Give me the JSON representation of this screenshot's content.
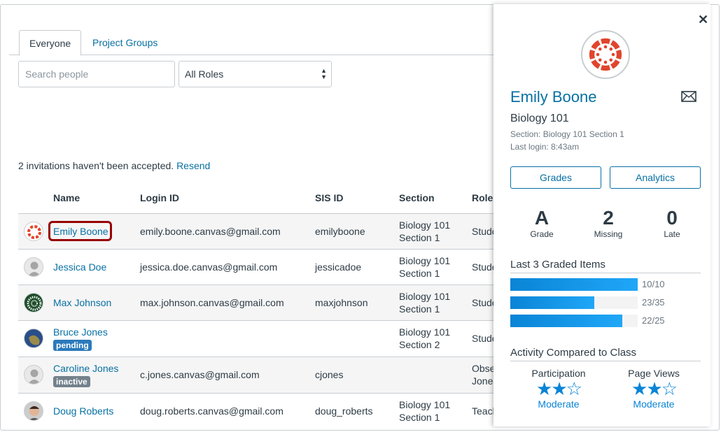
{
  "tabs": [
    {
      "label": "Everyone",
      "active": true
    },
    {
      "label": "Project Groups",
      "active": false
    }
  ],
  "search": {
    "placeholder": "Search people"
  },
  "role_filter": {
    "value": "All Roles"
  },
  "invitations": {
    "text": "2 invitations haven't been accepted.",
    "link": "Resend"
  },
  "table": {
    "headers": [
      "Name",
      "Login ID",
      "SIS ID",
      "Section",
      "Role"
    ],
    "rows": [
      {
        "name": "Emily Boone",
        "login": "emily.boone.canvas@gmail.com",
        "sis": "emilyboone",
        "section1": "Biology 101",
        "section2": "Section 1",
        "role1": "Stude",
        "role2": "",
        "avatar": "canvas-logo"
      },
      {
        "name": "Jessica Doe",
        "login": "jessica.doe.canvas@gmail.com",
        "sis": "jessicadoe",
        "section1": "Biology 101",
        "section2": "Section 1",
        "role1": "Stude",
        "role2": "",
        "avatar": "default-user"
      },
      {
        "name": "Max Johnson",
        "login": "max.johnson.canvas@gmail.com",
        "sis": "maxjohnson",
        "section1": "Biology 101",
        "section2": "Section 1",
        "role1": "Stude",
        "role2": "",
        "avatar": "pattern"
      },
      {
        "name": "Bruce Jones",
        "badge": "pending",
        "login": "",
        "sis": "",
        "section1": "Biology 101",
        "section2": "Section 2",
        "role1": "Stude",
        "role2": "",
        "avatar": "earth"
      },
      {
        "name": "Caroline Jones",
        "badge": "inactive",
        "login": "c.jones.canvas@gmail.com",
        "sis": "cjones",
        "section1": "",
        "section2": "",
        "role1": "Obse",
        "role2": "Jones",
        "avatar": "default-user"
      },
      {
        "name": "Doug Roberts",
        "login": "doug.roberts.canvas@gmail.com",
        "sis": "doug_roberts",
        "section1": "Biology 101",
        "section2": "Section 1",
        "role1": "Teach",
        "role2": "",
        "avatar": "photo"
      }
    ]
  },
  "colors": {
    "link": "#0770a3",
    "pending": "#2b7abc",
    "inactive": "#73818c",
    "highlight": "#990000",
    "brand": "#e0452d",
    "bar": "#0a84d6"
  },
  "panel": {
    "close_icon": "close-icon",
    "name": "Emily Boone",
    "course": "Biology 101",
    "section": "Section: Biology 101 Section 1",
    "last_login": "Last login: 8:43am",
    "buttons": {
      "grades": "Grades",
      "analytics": "Analytics"
    },
    "stats": [
      {
        "value": "A",
        "label": "Grade"
      },
      {
        "value": "2",
        "label": "Missing"
      },
      {
        "value": "0",
        "label": "Late"
      }
    ],
    "graded_title": "Last 3 Graded Items",
    "graded": [
      {
        "label": "10/10",
        "score": 10,
        "max": 10
      },
      {
        "label": "23/35",
        "score": 23,
        "max": 35
      },
      {
        "label": "22/25",
        "score": 22,
        "max": 25
      }
    ],
    "activity_title": "Activity Compared to Class",
    "activity": [
      {
        "label": "Participation",
        "stars": 2,
        "max_stars": 3,
        "level": "Moderate"
      },
      {
        "label": "Page Views",
        "stars": 2,
        "max_stars": 3,
        "level": "Moderate"
      }
    ]
  }
}
